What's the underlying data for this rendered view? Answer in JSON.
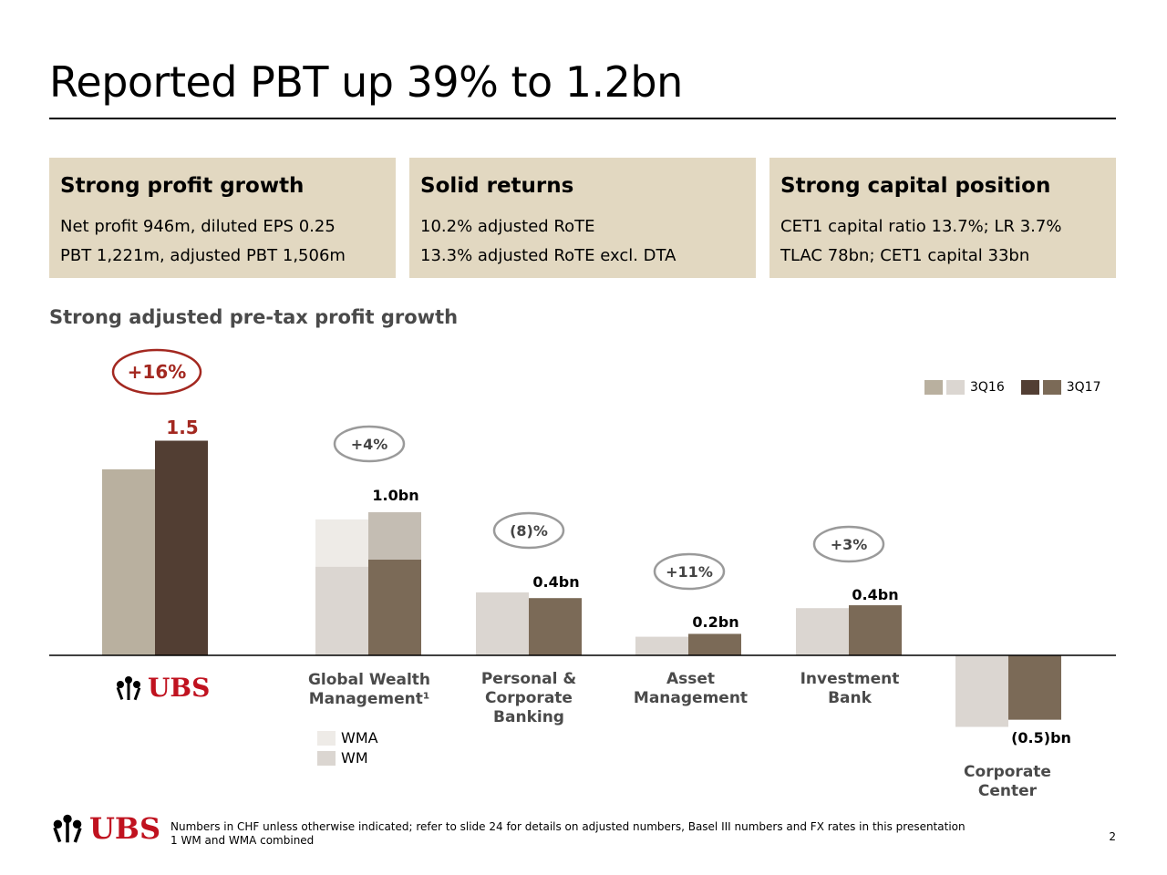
{
  "title": "Reported PBT up 39% to 1.2bn",
  "boxes": [
    {
      "heading": "Strong profit growth",
      "line1": "Net profit 946m, diluted EPS 0.25",
      "line2": "PBT 1,221m, adjusted PBT 1,506m"
    },
    {
      "heading": "Solid returns",
      "line1": "10.2% adjusted RoTE",
      "line2": "13.3% adjusted RoTE excl. DTA"
    },
    {
      "heading": "Strong capital position",
      "line1": "CET1 capital ratio 13.7%; LR 3.7%",
      "line2": "TLAC 78bn; CET1 capital 33bn"
    }
  ],
  "subhead": "Strong adjusted pre-tax profit growth",
  "legend": {
    "prev": "3Q16",
    "curr": "3Q17"
  },
  "inset_legend": {
    "wma": "WMA",
    "wm": "WM"
  },
  "logo_text": "UBS",
  "footnote": {
    "line1": "Numbers in CHF unless otherwise indicated; refer to slide 24 for details on adjusted numbers, Basel III numbers and FX rates in this presentation",
    "line2": "1 WM and WMA combined"
  },
  "page_number": "2",
  "colors": {
    "prev_group": "#b9b09f",
    "curr_group": "#523e33",
    "prev_seg": "#dbd6d1",
    "curr_seg": "#7b6a57",
    "wma_prev": "#eeebe7",
    "wma_curr": "#c4bdb3",
    "accent_red": "#a32820",
    "badge_gray": "#9a9a9a",
    "box_bg": "#e2d8c1"
  },
  "chart_data": {
    "type": "bar",
    "unit": "bn",
    "categories": [
      "UBS",
      "Global Wealth Management¹",
      "Personal & Corporate Banking",
      "Asset Management",
      "Investment Bank",
      "Corporate Center"
    ],
    "series": [
      {
        "name": "3Q16",
        "values": [
          1.3,
          0.95,
          0.44,
          0.13,
          0.33,
          -0.5
        ]
      },
      {
        "name": "3Q17",
        "values": [
          1.5,
          1.0,
          0.4,
          0.15,
          0.35,
          -0.45
        ]
      }
    ],
    "gwm_breakdown": {
      "3Q16": {
        "WM": 0.62,
        "WMA": 0.33
      },
      "3Q17": {
        "WM": 0.67,
        "WMA": 0.33
      }
    },
    "value_labels": [
      "1.5",
      "1.0bn",
      "0.4bn",
      "0.2bn",
      "0.4bn",
      "(0.5)bn"
    ],
    "growth_labels": [
      "+16%",
      "+4%",
      "(8)%",
      "+11%",
      "+3%",
      ""
    ]
  }
}
